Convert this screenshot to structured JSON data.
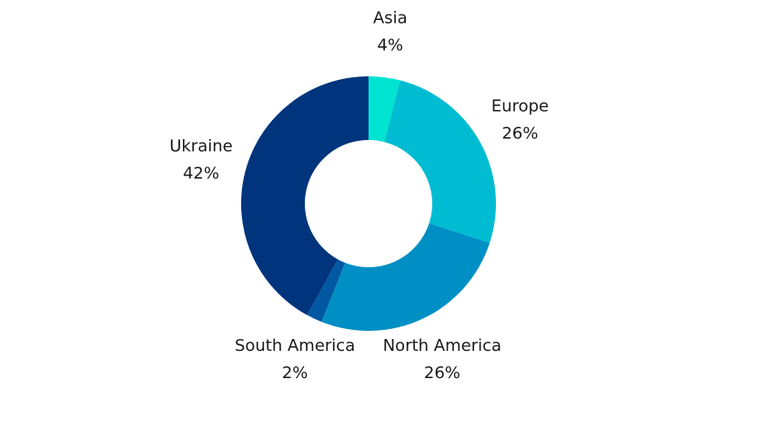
{
  "chart_data": {
    "type": "donut",
    "categories": [
      "Asia",
      "Europe",
      "North America",
      "South America",
      "Ukraine"
    ],
    "values": [
      4,
      26,
      26,
      2,
      42
    ],
    "value_labels": [
      "4%",
      "26%",
      "26%",
      "2%",
      "42%"
    ],
    "colors": [
      "#00e3d1",
      "#00bcd2",
      "#008fc4",
      "#0058a3",
      "#00347c"
    ]
  }
}
